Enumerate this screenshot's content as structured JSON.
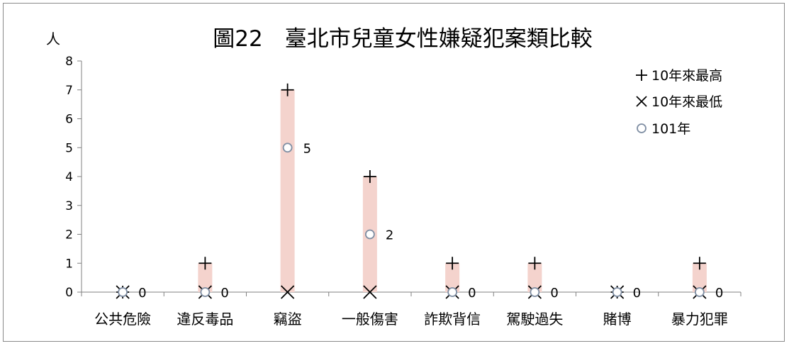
{
  "chart_data": {
    "type": "bar",
    "title": "圖22　臺北市兒童女性嫌疑犯案類比較",
    "ylabel": "人",
    "ylim": [
      0,
      8
    ],
    "yticks": [
      "0",
      "1",
      "2",
      "3",
      "4",
      "5",
      "6",
      "7",
      "8"
    ],
    "categories": [
      "公共危險",
      "違反毒品",
      "竊盜",
      "一般傷害",
      "詐欺背信",
      "駕駛過失",
      "賭博",
      "暴力犯罪"
    ],
    "series": [
      {
        "name": "10年來最高",
        "marker": "plus",
        "values": [
          0,
          1,
          7,
          4,
          1,
          1,
          0,
          1
        ]
      },
      {
        "name": "10年來最低",
        "marker": "cross",
        "values": [
          0,
          0,
          0,
          0,
          0,
          0,
          0,
          0
        ]
      },
      {
        "name": "101年",
        "marker": "circle",
        "values": [
          0,
          0,
          5,
          2,
          0,
          0,
          0,
          0
        ]
      }
    ],
    "data_labels": [
      "0",
      "0",
      "5",
      "2",
      "0",
      "0",
      "0",
      "0"
    ],
    "legend_position": "top-right",
    "colors": {
      "range_bar": "#f4d3cd",
      "circle_stroke": "#7f8ea3",
      "marker": "#000000",
      "axis": "#808080"
    }
  }
}
